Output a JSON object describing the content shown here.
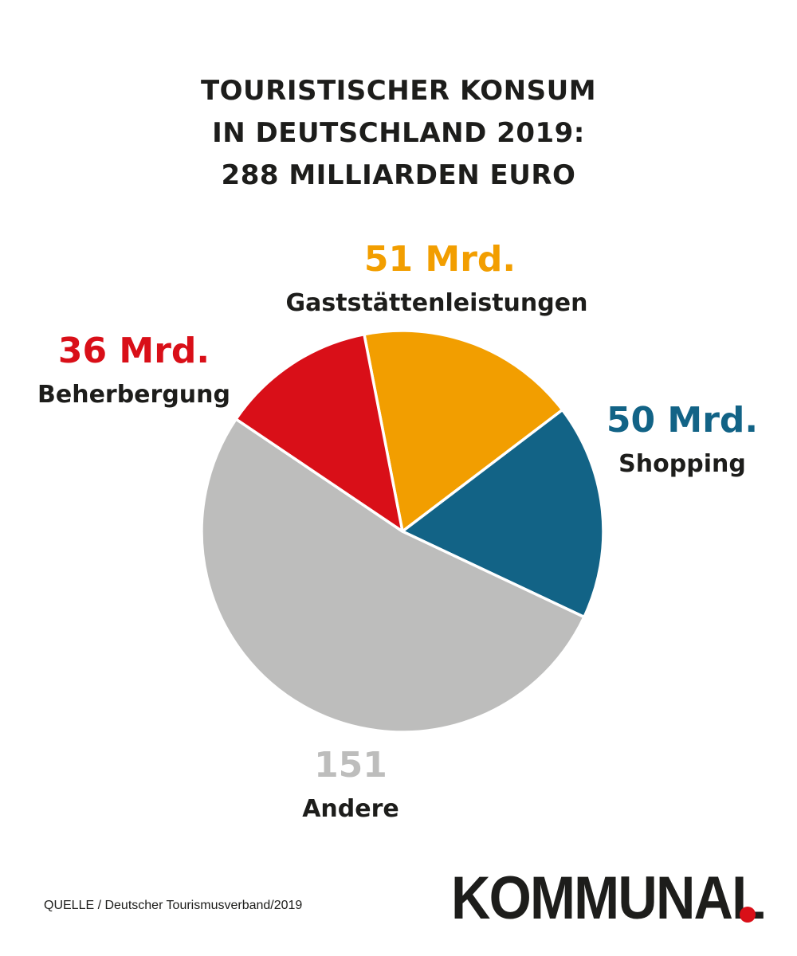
{
  "title_lines": [
    "TOURISTISCHER KONSUM",
    "IN DEUTSCHLAND 2019:",
    "288 MILLIARDEN EURO"
  ],
  "source": "QUELLE / Deutscher Tourismusverband/2019",
  "logo": {
    "text": "KOMMUNAL",
    "dot_color": "#d90f18"
  },
  "chart_data": {
    "type": "pie",
    "title": "TOURISTISCHER KONSUM IN DEUTSCHLAND 2019: 288 MILLIARDEN EURO",
    "total": 288,
    "unit": "Mrd. Euro",
    "slices": [
      {
        "category": "Gaststättenleistungen",
        "value": 51,
        "value_label": "51 Mrd.",
        "color": "#f29e00"
      },
      {
        "category": "Shopping",
        "value": 50,
        "value_label": "50 Mrd.",
        "color": "#126386"
      },
      {
        "category": "Andere",
        "value": 151,
        "value_label": "151",
        "color": "#bdbdbc"
      },
      {
        "category": "Beherbergung",
        "value": 36,
        "value_label": "36 Mrd.",
        "color": "#d90f18"
      }
    ]
  }
}
